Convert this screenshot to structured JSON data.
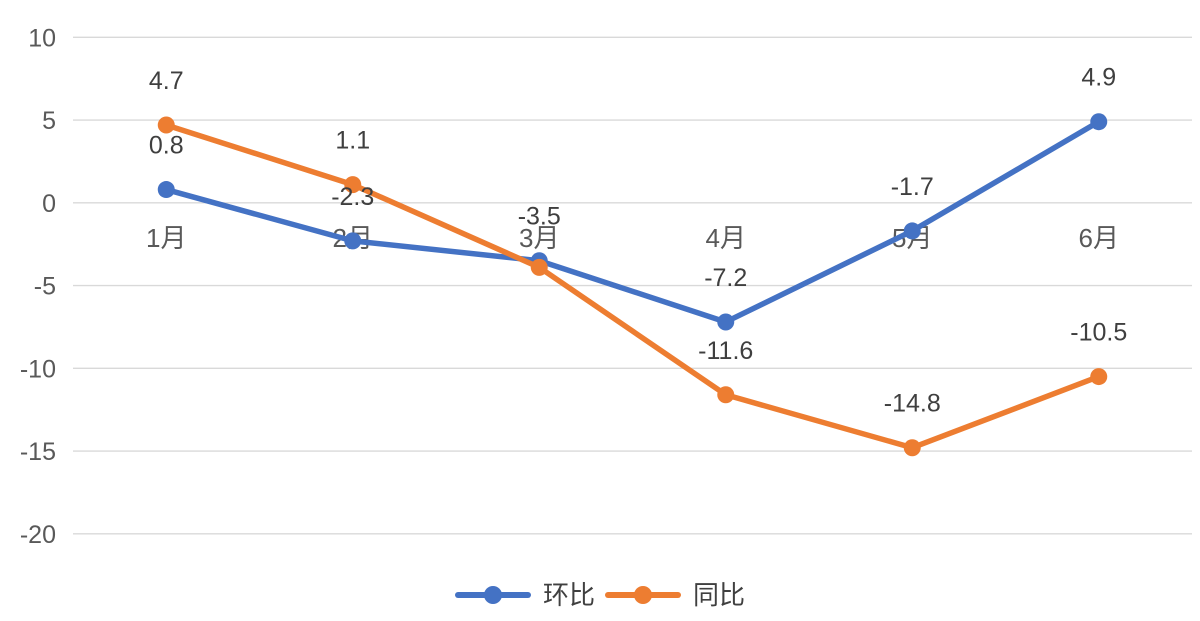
{
  "chart_data": {
    "type": "line",
    "title": "",
    "xlabel": "",
    "ylabel": "",
    "categories": [
      "1月",
      "2月",
      "3月",
      "4月",
      "5月",
      "6月"
    ],
    "series": [
      {
        "name": "环比",
        "color": "#4472C4",
        "values": [
          0.8,
          -2.3,
          -3.5,
          -7.2,
          -1.7,
          4.9
        ],
        "labels": [
          "0.8",
          "-2.3",
          "-3.5",
          "-7.2",
          "-1.7",
          "4.9"
        ]
      },
      {
        "name": "同比",
        "color": "#ED7D31",
        "values": [
          4.7,
          1.1,
          -3.9,
          -11.6,
          -14.8,
          -10.5
        ],
        "labels": [
          "4.7",
          "1.1",
          "",
          "-11.6",
          "-14.8",
          "-10.5"
        ]
      }
    ],
    "yticks": [
      "10",
      "5",
      "0",
      "-5",
      "-10",
      "-15",
      "-20"
    ],
    "ytick_values": [
      10,
      5,
      0,
      -5,
      -10,
      -15,
      -20
    ],
    "ylim": [
      -20,
      10
    ],
    "grid": true,
    "legend_position": "bottom"
  },
  "style": {
    "background": "#FFFFFF",
    "gridline_color": "#D9D9D9",
    "axis_text_color": "#595959",
    "data_label_color": "#3F3F3F"
  }
}
